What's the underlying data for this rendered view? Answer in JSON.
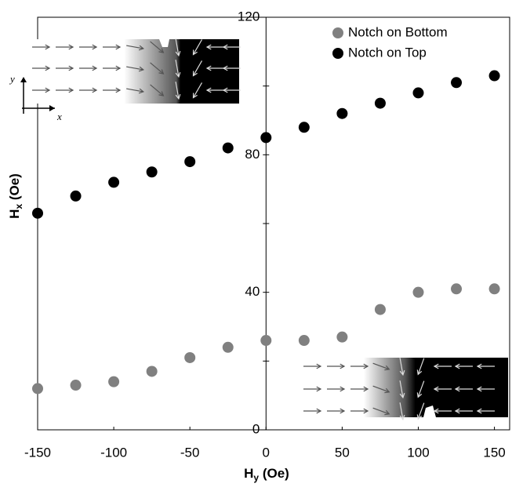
{
  "chart_data": {
    "type": "scatter",
    "xlabel": [
      "H",
      "y",
      " (Oe)"
    ],
    "ylabel": [
      "H",
      "x",
      " (Oe)"
    ],
    "x": [
      -150,
      -125,
      -100,
      -75,
      -50,
      -25,
      0,
      25,
      50,
      75,
      100,
      125,
      150
    ],
    "series": [
      {
        "name": "Notch on Bottom",
        "color": "#808080",
        "values": [
          12,
          13,
          14,
          17,
          21,
          24,
          26,
          26,
          27,
          35,
          40,
          41,
          41
        ]
      },
      {
        "name": "Notch on Top",
        "color": "#000000",
        "values": [
          63,
          68,
          72,
          75,
          78,
          82,
          85,
          88,
          92,
          95,
          98,
          101,
          103
        ]
      }
    ],
    "xlim": [
      -150,
      160
    ],
    "xticks": [
      -150,
      -100,
      -50,
      0,
      50,
      100,
      150
    ],
    "ylim": [
      0,
      120
    ],
    "yticks": [
      0,
      40,
      80,
      120
    ],
    "yminor_ticks": [
      20,
      60,
      100
    ],
    "legend": "upper right",
    "inset_axis_labels": {
      "x": "x",
      "y": "y"
    }
  }
}
